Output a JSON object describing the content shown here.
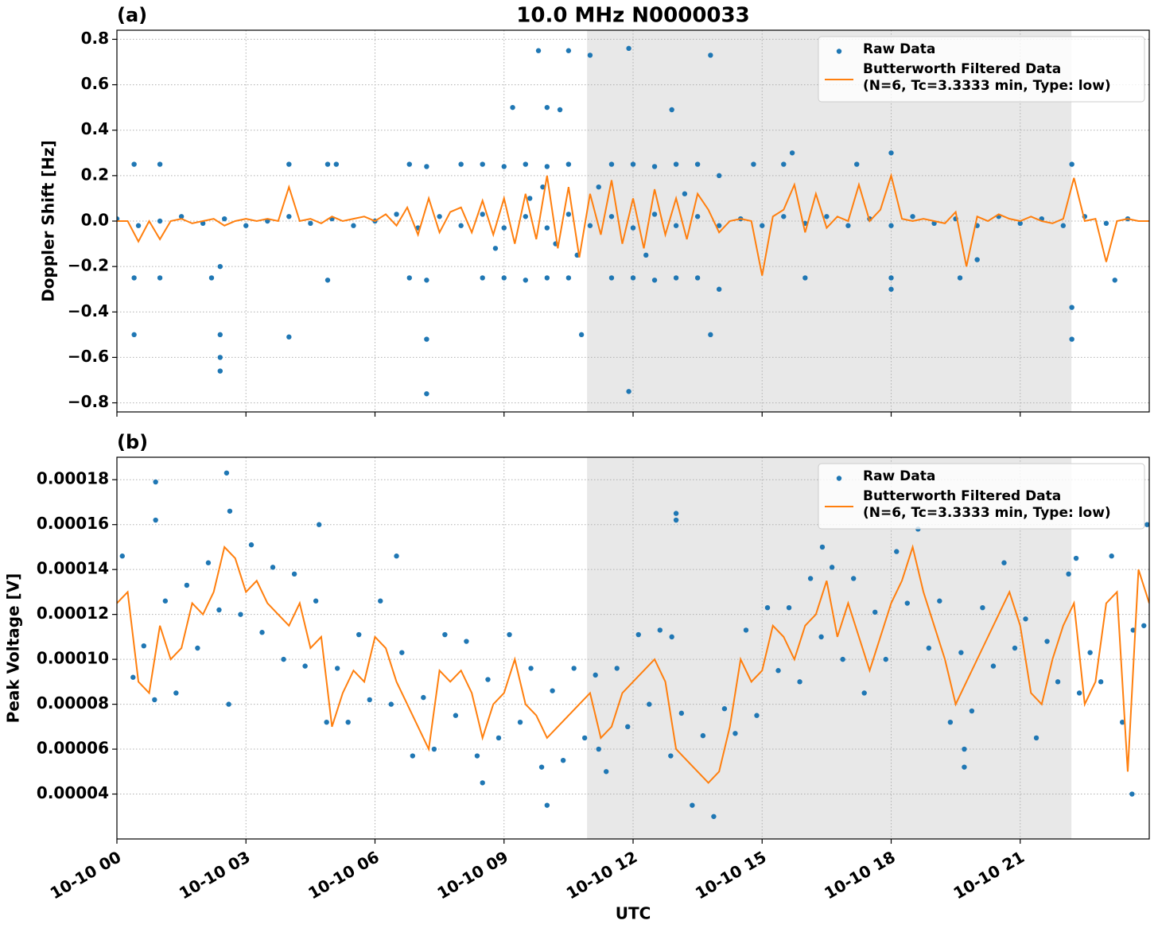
{
  "chart_data": [
    {
      "type": "scatter",
      "title": "10.0 MHz N0000033",
      "panel_label": "(a)",
      "ylabel": "Doppler Shift [Hz]",
      "xlim": [
        0,
        24
      ],
      "xticks": [
        0,
        3,
        6,
        9,
        12,
        15,
        18,
        21
      ],
      "show_xtick_labels": false,
      "ylim": [
        -0.84,
        0.84
      ],
      "yticks": [
        {
          "value": -0.8,
          "label": "−0.8"
        },
        {
          "value": -0.6,
          "label": "−0.6"
        },
        {
          "value": -0.4,
          "label": "−0.4"
        },
        {
          "value": -0.2,
          "label": "−0.2"
        },
        {
          "value": 0,
          "label": "0.0"
        },
        0.2,
        0.4,
        0.6,
        0.8
      ],
      "grid": true,
      "legend": "upper right",
      "shade": {
        "x": [
          10.93,
          22.19
        ],
        "color": "#e8e8e8"
      },
      "series": [
        {
          "name": "Raw Data",
          "type": "scatter",
          "color": "#1f77b4",
          "x": [
            0,
            0.5,
            1,
            1.5,
            2,
            2.5,
            3,
            3.5,
            4,
            4.5,
            5,
            5.5,
            6,
            6.5,
            7,
            7.5,
            8,
            8.5,
            9,
            9.5,
            10,
            10.5,
            11,
            11.5,
            12,
            12.5,
            13,
            13.5,
            14,
            14.5,
            15,
            15.5,
            16,
            16.5,
            17,
            17.5,
            18,
            18.5,
            19,
            19.5,
            20,
            20.5,
            21,
            21.5,
            22,
            22.5,
            23,
            23.5,
            0.4,
            0.4,
            0.4,
            1.0,
            1.0,
            2.2,
            2.4,
            2.4,
            2.4,
            2.4,
            4.0,
            4.0,
            4.9,
            5.1,
            4.9,
            6.8,
            7.2,
            6.8,
            7.2,
            7.2,
            7.2,
            8.0,
            8.5,
            9.0,
            9.5,
            10.0,
            10.5,
            8.5,
            9.0,
            9.5,
            10.0,
            10.5,
            10.0,
            10.3,
            10.5,
            9.8,
            9.2,
            10.8,
            11.0,
            11.5,
            12.0,
            11.5,
            12.0,
            11.9,
            11.9,
            12.5,
            13.0,
            13.5,
            12.5,
            13.0,
            13.5,
            13.8,
            13.8,
            12.9,
            14.0,
            14.0,
            14.8,
            15.5,
            15.7,
            16.0,
            17.2,
            18.0,
            18.0,
            18.0,
            19.6,
            20.0,
            22.2,
            22.2,
            22.2,
            23.2,
            9.6,
            10.2,
            9.9,
            10.7,
            8.8,
            11.2,
            12.3,
            13.2
          ],
          "values": [
            0.01,
            -0.02,
            0.0,
            0.02,
            -0.01,
            0.01,
            -0.02,
            0.0,
            0.02,
            -0.01,
            0.01,
            -0.02,
            0.0,
            0.03,
            -0.03,
            0.02,
            -0.02,
            0.03,
            -0.03,
            0.02,
            -0.03,
            0.03,
            -0.02,
            0.02,
            -0.03,
            0.03,
            -0.02,
            0.02,
            -0.02,
            0.01,
            -0.02,
            0.02,
            -0.01,
            0.02,
            -0.02,
            0.01,
            -0.02,
            0.02,
            -0.01,
            0.01,
            -0.02,
            0.02,
            -0.01,
            0.01,
            -0.02,
            0.02,
            -0.01,
            0.01,
            0.25,
            -0.25,
            -0.5,
            0.25,
            -0.25,
            -0.25,
            -0.2,
            -0.5,
            -0.6,
            -0.66,
            0.25,
            -0.51,
            0.25,
            0.25,
            -0.26,
            0.25,
            0.24,
            -0.25,
            -0.26,
            -0.52,
            -0.76,
            0.25,
            0.25,
            0.24,
            0.25,
            0.24,
            0.25,
            -0.25,
            -0.25,
            -0.26,
            -0.25,
            -0.25,
            0.5,
            0.49,
            0.75,
            0.75,
            0.5,
            -0.5,
            0.73,
            0.25,
            0.25,
            -0.25,
            -0.25,
            0.76,
            -0.75,
            0.24,
            0.25,
            0.25,
            -0.26,
            -0.25,
            -0.25,
            0.73,
            -0.5,
            0.49,
            0.2,
            -0.3,
            0.25,
            0.25,
            0.3,
            -0.25,
            0.25,
            0.3,
            -0.25,
            -0.3,
            -0.25,
            -0.17,
            0.25,
            -0.38,
            -0.52,
            -0.26,
            0.1,
            -0.1,
            0.15,
            -0.15,
            -0.12,
            0.15,
            -0.15,
            0.12
          ]
        },
        {
          "name": "Butterworth Filtered Data\n(N=6, Tc=3.3333 min, Type: low)",
          "type": "line",
          "color": "#ff7f0e",
          "x": [
            0,
            0.25,
            0.5,
            0.75,
            1,
            1.25,
            1.5,
            1.75,
            2,
            2.25,
            2.5,
            2.75,
            3,
            3.25,
            3.5,
            3.75,
            4,
            4.25,
            4.5,
            4.75,
            5,
            5.25,
            5.5,
            5.75,
            6,
            6.25,
            6.5,
            6.75,
            7,
            7.25,
            7.5,
            7.75,
            8,
            8.25,
            8.5,
            8.75,
            9,
            9.25,
            9.5,
            9.75,
            10,
            10.25,
            10.5,
            10.75,
            11,
            11.25,
            11.5,
            11.75,
            12,
            12.25,
            12.5,
            12.75,
            13,
            13.25,
            13.5,
            13.75,
            14,
            14.25,
            14.5,
            14.75,
            15,
            15.25,
            15.5,
            15.75,
            16,
            16.25,
            16.5,
            16.75,
            17,
            17.25,
            17.5,
            17.75,
            18,
            18.25,
            18.5,
            18.75,
            19,
            19.25,
            19.5,
            19.75,
            20,
            20.25,
            20.5,
            20.75,
            21,
            21.25,
            21.5,
            21.75,
            22,
            22.25,
            22.5,
            22.75,
            23,
            23.25,
            23.5,
            23.75,
            24
          ],
          "values": [
            0,
            0,
            -0.09,
            0,
            -0.08,
            0,
            0.01,
            -0.01,
            0,
            0.01,
            -0.02,
            0,
            0.01,
            0,
            0.01,
            0,
            0.15,
            0,
            0.01,
            -0.01,
            0.02,
            0,
            0.01,
            0.02,
            0,
            0.03,
            -0.02,
            0.06,
            -0.06,
            0.1,
            -0.05,
            0.04,
            0.06,
            -0.05,
            0.09,
            -0.06,
            0.1,
            -0.1,
            0.12,
            -0.08,
            0.2,
            -0.12,
            0.15,
            -0.16,
            0.12,
            -0.06,
            0.18,
            -0.1,
            0.1,
            -0.12,
            0.14,
            -0.06,
            0.1,
            -0.08,
            0.12,
            0.05,
            -0.05,
            0,
            0.01,
            0,
            -0.24,
            0.02,
            0.05,
            0.16,
            -0.05,
            0.12,
            -0.03,
            0.02,
            0,
            0.16,
            0,
            0.05,
            0.2,
            0.01,
            0,
            0.01,
            0,
            -0.01,
            0.04,
            -0.2,
            0.02,
            0,
            0.03,
            0.01,
            0,
            0.02,
            0,
            -0.01,
            0.01,
            0.19,
            0,
            0.01,
            -0.18,
            0,
            0.01,
            0,
            0
          ]
        }
      ]
    },
    {
      "type": "scatter",
      "panel_label": "(b)",
      "ylabel": "Peak Voltage [V]",
      "xlabel": "UTC",
      "xlim": [
        0,
        24
      ],
      "xticks": [
        {
          "value": 0,
          "label": "10-10 00"
        },
        {
          "value": 3,
          "label": "10-10 03"
        },
        {
          "value": 6,
          "label": "10-10 06"
        },
        {
          "value": 9,
          "label": "10-10 09"
        },
        {
          "value": 12,
          "label": "10-10 12"
        },
        {
          "value": 15,
          "label": "10-10 15"
        },
        {
          "value": 18,
          "label": "10-10 18"
        },
        {
          "value": 21,
          "label": "10-10 21"
        }
      ],
      "show_xtick_labels": true,
      "ylim": [
        2e-05,
        0.00019
      ],
      "yticks": [
        4e-05,
        6e-05,
        8e-05,
        {
          "value": 0.0001,
          "label": "0.00010"
        },
        0.00012,
        0.00014,
        0.00016,
        0.00018
      ],
      "grid": true,
      "legend": "upper right",
      "shade": {
        "x": [
          10.93,
          22.19
        ],
        "color": "#e8e8e8"
      },
      "series": [
        {
          "name": "Raw Data",
          "type": "scatter",
          "color": "#1f77b4",
          "x": [
            0.125,
            0.375,
            0.625,
            0.875,
            1.125,
            1.375,
            1.625,
            1.875,
            2.125,
            2.375,
            2.625,
            2.875,
            3.125,
            3.375,
            3.625,
            3.875,
            4.125,
            4.375,
            4.625,
            4.875,
            5.125,
            5.375,
            5.625,
            5.875,
            6.125,
            6.375,
            6.625,
            6.875,
            7.125,
            7.375,
            7.625,
            7.875,
            8.125,
            8.375,
            8.625,
            8.875,
            9.125,
            9.375,
            9.625,
            9.875,
            10.125,
            10.375,
            10.625,
            10.875,
            11.125,
            11.375,
            11.625,
            11.875,
            12.125,
            12.375,
            12.625,
            12.875,
            13.125,
            13.375,
            13.625,
            13.875,
            14.125,
            14.375,
            14.625,
            14.875,
            15.125,
            15.375,
            15.625,
            15.875,
            16.125,
            16.375,
            16.625,
            16.875,
            17.125,
            17.375,
            17.625,
            17.875,
            18.125,
            18.375,
            18.625,
            18.875,
            19.125,
            19.375,
            19.625,
            19.875,
            20.125,
            20.375,
            20.625,
            20.875,
            21.125,
            21.375,
            21.625,
            21.875,
            22.125,
            22.375,
            22.625,
            22.875,
            23.125,
            23.375,
            23.625,
            23.875,
            0.9,
            0.9,
            2.55,
            2.6,
            6.5,
            13.0,
            13.0,
            11.2,
            12.9,
            16.4,
            19.7,
            19.7,
            22.3,
            23.6,
            23.95,
            4.7,
            8.5,
            10.0
          ],
          "values": [
            0.000146,
            9.2e-05,
            0.000106,
            8.2e-05,
            0.000126,
            8.5e-05,
            0.000133,
            0.000105,
            0.000143,
            0.000122,
            0.000166,
            0.00012,
            0.000151,
            0.000112,
            0.000141,
            0.0001,
            0.000138,
            9.7e-05,
            0.000126,
            7.2e-05,
            9.6e-05,
            7.2e-05,
            0.000111,
            8.2e-05,
            0.000126,
            8e-05,
            0.000103,
            5.7e-05,
            8.3e-05,
            6e-05,
            0.000111,
            7.5e-05,
            0.000108,
            5.7e-05,
            9.1e-05,
            6.5e-05,
            0.000111,
            7.2e-05,
            9.6e-05,
            5.2e-05,
            8.6e-05,
            5.5e-05,
            9.6e-05,
            6.5e-05,
            9.3e-05,
            5e-05,
            9.6e-05,
            7e-05,
            0.000111,
            8e-05,
            0.000113,
            5.7e-05,
            7.6e-05,
            3.5e-05,
            6.6e-05,
            3e-05,
            7.8e-05,
            6.7e-05,
            0.000113,
            7.5e-05,
            0.000123,
            9.5e-05,
            0.000123,
            9e-05,
            0.000136,
            0.00011,
            0.000141,
            0.0001,
            0.000136,
            8.5e-05,
            0.000121,
            0.0001,
            0.000148,
            0.000125,
            0.000158,
            0.000105,
            0.000126,
            7.2e-05,
            0.000103,
            7.7e-05,
            0.000123,
            9.7e-05,
            0.000143,
            0.000105,
            0.000118,
            6.5e-05,
            0.000108,
            9e-05,
            0.000138,
            8.5e-05,
            0.000103,
            9e-05,
            0.000146,
            7.2e-05,
            0.000113,
            0.000115,
            0.000179,
            0.000162,
            0.000183,
            8e-05,
            0.000146,
            0.000165,
            0.000162,
            6e-05,
            0.00011,
            0.00015,
            6e-05,
            5.2e-05,
            0.000145,
            4e-05,
            0.00016,
            0.00016,
            4.5e-05,
            3.5e-05
          ]
        },
        {
          "name": "Butterworth Filtered Data\n(N=6, Tc=3.3333 min, Type: low)",
          "type": "line",
          "color": "#ff7f0e",
          "x": [
            0,
            0.25,
            0.5,
            0.75,
            1,
            1.25,
            1.5,
            1.75,
            2,
            2.25,
            2.5,
            2.75,
            3,
            3.25,
            3.5,
            3.75,
            4,
            4.25,
            4.5,
            4.75,
            5,
            5.25,
            5.5,
            5.75,
            6,
            6.25,
            6.5,
            6.75,
            7,
            7.25,
            7.5,
            7.75,
            8,
            8.25,
            8.5,
            8.75,
            9,
            9.25,
            9.5,
            9.75,
            10,
            10.25,
            10.5,
            10.75,
            11,
            11.25,
            11.5,
            11.75,
            12,
            12.25,
            12.5,
            12.75,
            13,
            13.25,
            13.5,
            13.75,
            14,
            14.25,
            14.5,
            14.75,
            15,
            15.25,
            15.5,
            15.75,
            16,
            16.25,
            16.5,
            16.75,
            17,
            17.25,
            17.5,
            17.75,
            18,
            18.25,
            18.5,
            18.75,
            19,
            19.25,
            19.5,
            19.75,
            20,
            20.25,
            20.5,
            20.75,
            21,
            21.25,
            21.5,
            21.75,
            22,
            22.25,
            22.5,
            22.75,
            23,
            23.25,
            23.5,
            23.75,
            24
          ],
          "values": [
            0.000125,
            0.00013,
            9e-05,
            8.5e-05,
            0.000115,
            0.0001,
            0.000105,
            0.000125,
            0.00012,
            0.00013,
            0.00015,
            0.000145,
            0.00013,
            0.000135,
            0.000125,
            0.00012,
            0.000115,
            0.000125,
            0.000105,
            0.00011,
            7e-05,
            8.5e-05,
            9.5e-05,
            9e-05,
            0.00011,
            0.000105,
            9e-05,
            8e-05,
            7e-05,
            6e-05,
            9.5e-05,
            9e-05,
            9.5e-05,
            8.5e-05,
            6.5e-05,
            8e-05,
            8.5e-05,
            0.0001,
            8e-05,
            7.5e-05,
            6.5e-05,
            7e-05,
            7.5e-05,
            8e-05,
            8.5e-05,
            6.5e-05,
            7e-05,
            8.5e-05,
            9e-05,
            9.5e-05,
            0.0001,
            9e-05,
            6e-05,
            5.5e-05,
            5e-05,
            4.5e-05,
            5e-05,
            7e-05,
            0.0001,
            9e-05,
            9.5e-05,
            0.000115,
            0.00011,
            0.0001,
            0.000115,
            0.00012,
            0.000135,
            0.00011,
            0.000125,
            0.00011,
            9.5e-05,
            0.00011,
            0.000125,
            0.000135,
            0.00015,
            0.00013,
            0.000115,
            0.0001,
            8e-05,
            9e-05,
            0.0001,
            0.00011,
            0.00012,
            0.00013,
            0.000115,
            8.5e-05,
            8e-05,
            0.0001,
            0.000115,
            0.000125,
            8e-05,
            9e-05,
            0.000125,
            0.00013,
            5e-05,
            0.00014,
            0.000125
          ]
        }
      ]
    }
  ]
}
